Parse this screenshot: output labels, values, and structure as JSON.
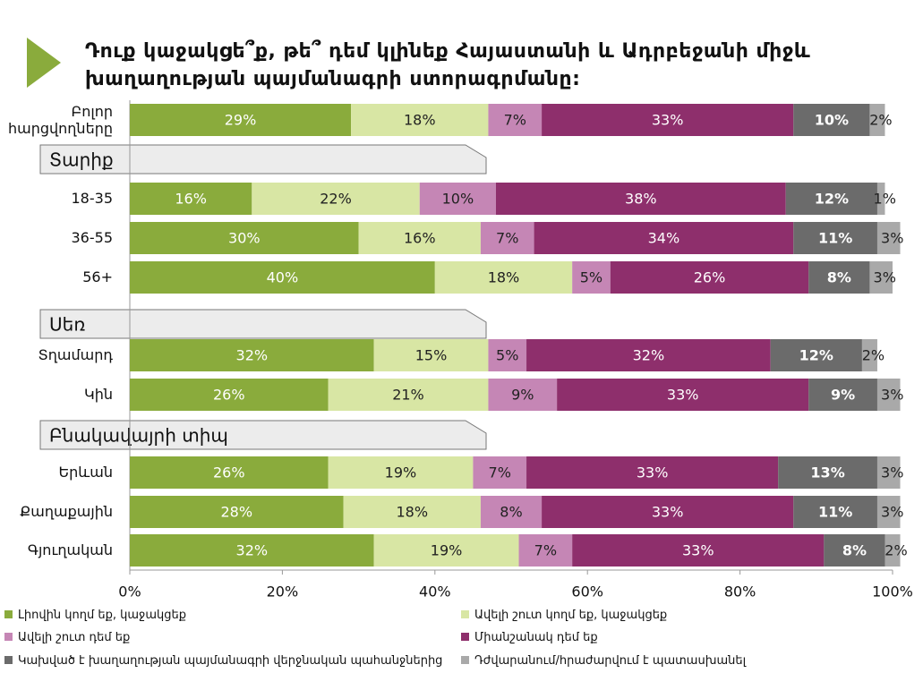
{
  "chart_data": {
    "type": "stacked-bar-horizontal",
    "title": "Դուք կաջակցե՞ք, թե՞ դեմ կլինեք Հայաստանի և Ադրբեջանի միջև խաղաղության պայմանագրի ստորագրմանը:",
    "categories": [
      "Բոլոր հարցվողները",
      "18-35",
      "36-55",
      "56+",
      "Տղամարդ",
      "Կին",
      "Երևան",
      "Քաղաքային",
      "Գյուղական"
    ],
    "groups": [
      "Տարիք",
      "Սեռ",
      "Բնակավայրի տիպ"
    ],
    "series": [
      {
        "name": "Լիովին կողմ եք, կաջակցեք",
        "color": "#8aab3c",
        "values": [
          29,
          16,
          30,
          40,
          32,
          26,
          26,
          28,
          32
        ],
        "value_labels": [
          "29%",
          "16%",
          "30%",
          "40%",
          "32%",
          "26%",
          "26%",
          "28%",
          "32%"
        ]
      },
      {
        "name": "Ավելի շուտ կողմ եք, կաջակցեք",
        "color": "#d8e6a4",
        "values": [
          18,
          22,
          16,
          18,
          15,
          21,
          19,
          18,
          19
        ],
        "value_labels": [
          "18%",
          "22%",
          "16%",
          "18%",
          "15%",
          "21%",
          "19%",
          "18%",
          "19%"
        ]
      },
      {
        "name": "Ավելի շուտ դեմ եք",
        "color": "#c586b5",
        "values": [
          7,
          10,
          7,
          5,
          5,
          9,
          7,
          8,
          7
        ],
        "value_labels": [
          "7%",
          "10%",
          "7%",
          "5%",
          "5%",
          "9%",
          "7%",
          "8%",
          "7%"
        ]
      },
      {
        "name": "Միանշանակ դեմ եք",
        "color": "#8e2f6c",
        "values": [
          33,
          38,
          34,
          26,
          32,
          33,
          33,
          33,
          33
        ],
        "value_labels": [
          "33%",
          "38%",
          "34%",
          "26%",
          "32%",
          "33%",
          "33%",
          "33%",
          "33%"
        ]
      },
      {
        "name": "Կախված է խաղաղության պայմանագրի վերջնական պահանջներից",
        "color": "#6b6b6b",
        "values": [
          10,
          12,
          11,
          8,
          12,
          9,
          13,
          11,
          8
        ],
        "value_labels": [
          "10%",
          "12%",
          "11%",
          "8%",
          "12%",
          "9%",
          "13%",
          "11%",
          "8%"
        ]
      },
      {
        "name": "Դժվարանում/հրաժարվում է պատասխանել",
        "color": "#a9a9a9",
        "values": [
          2,
          1,
          3,
          3,
          2,
          3,
          3,
          3,
          2
        ],
        "value_labels": [
          "2%",
          "1%",
          "3%",
          "3%",
          "2%",
          "3%",
          "3%",
          "3%",
          "2%"
        ]
      }
    ],
    "xlim": [
      0,
      100
    ],
    "xticks": [
      {
        "value": 0,
        "label": "0%"
      },
      {
        "value": 20,
        "label": "20%"
      },
      {
        "value": 40,
        "label": "40%"
      },
      {
        "value": 60,
        "label": "60%"
      },
      {
        "value": 80,
        "label": "80%"
      },
      {
        "value": 100,
        "label": "100%"
      }
    ]
  }
}
